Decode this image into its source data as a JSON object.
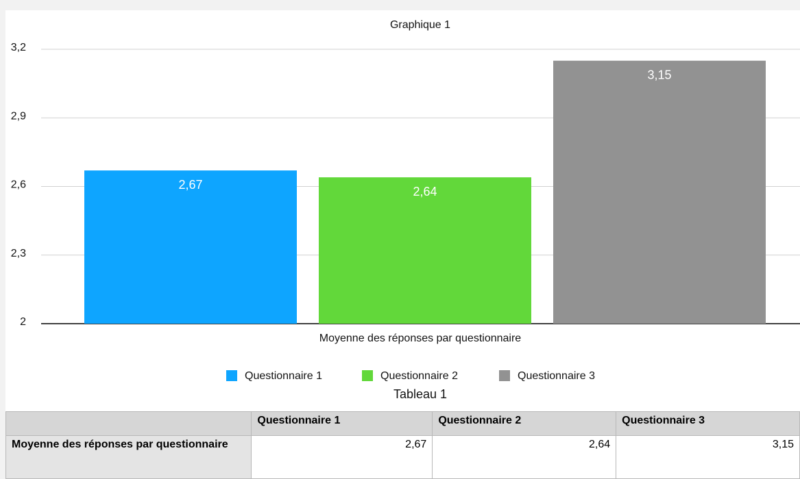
{
  "chart_data": {
    "type": "bar",
    "title": "Graphique 1",
    "x_label": "Moyenne des réponses par questionnaire",
    "categories": [
      "Moyenne des réponses par questionnaire"
    ],
    "series": [
      {
        "name": "Questionnaire 1",
        "color": "#0ea5ff",
        "values": [
          2.67
        ],
        "value_labels": [
          "2,67"
        ]
      },
      {
        "name": "Questionnaire 2",
        "color": "#62d83a",
        "values": [
          2.64
        ],
        "value_labels": [
          "2,64"
        ]
      },
      {
        "name": "Questionnaire 3",
        "color": "#929292",
        "values": [
          3.15
        ],
        "value_labels": [
          "3,15"
        ]
      }
    ],
    "ylim": [
      2,
      3.2
    ],
    "yticks": [
      2,
      {
        "value": 2.3,
        "label": "2,3"
      },
      {
        "value": 2.6,
        "label": "2,6"
      },
      {
        "value": 2.9,
        "label": "2,9"
      },
      {
        "value": 3.2,
        "label": "3,2"
      }
    ],
    "grid": true,
    "legend": "bottom"
  },
  "table": {
    "title": "Tableau 1",
    "columns": [
      "Questionnaire 1",
      "Questionnaire 2",
      "Questionnaire 3"
    ],
    "rows": [
      {
        "label": "Moyenne des réponses par questionnaire",
        "cells": [
          "2,67",
          "2,64",
          "3,15"
        ]
      }
    ]
  }
}
